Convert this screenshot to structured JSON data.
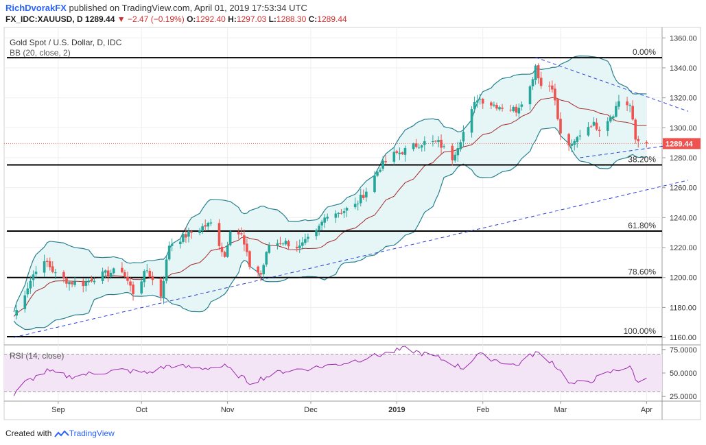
{
  "header": {
    "author": "RichDvorakFX",
    "published": "published on TradingView.com, April 01, 2019 17:53:34 UTC",
    "symbol": "FX_IDC:XAUUSD, D",
    "last": "1289.44",
    "change": "−2.47 (−0.19%)",
    "o_label": "O:",
    "o": "1292.40",
    "h_label": "H:",
    "h": "1297.03",
    "l_label": "L:",
    "l": "1288.30",
    "c_label": "C:",
    "c": "1289.44"
  },
  "legend": {
    "title": "Gold Spot / U.S. Dollar, D, IDC",
    "bb": "BB (20, close, 2)",
    "rsi": "RSI (14, close)"
  },
  "footer": {
    "created_with": "Created with",
    "brand": "TradingView"
  },
  "colors": {
    "up": "#26a69a",
    "down": "#ef5350",
    "bb": "#26808f",
    "bb_fill": "#e6f5f5",
    "basis": "#a52a2a",
    "trend": "#2a3fd6",
    "rsi": "#9c27b0",
    "rsi_fill": "#f3e5f5",
    "price_tag": "#ef5350"
  },
  "chart_data": {
    "type": "candlestick",
    "price_axis": {
      "ticks": [
        "1360.00",
        "1340.00",
        "1320.00",
        "1300.00",
        "1280.00",
        "1260.00",
        "1240.00",
        "1220.00",
        "1200.00",
        "1180.00",
        "1160.00"
      ],
      "ylim": [
        1155,
        1367
      ]
    },
    "current_price": "1289.44",
    "time_axis": {
      "labels": [
        "Sep",
        "Oct",
        "Nov",
        "Dec",
        "2019",
        "Feb",
        "Mar",
        "Apr"
      ]
    },
    "fibonacci": [
      {
        "label": "0.00%",
        "price": 1346.8
      },
      {
        "label": "38.20%",
        "price": 1275.2
      },
      {
        "label": "61.80%",
        "price": 1231.0
      },
      {
        "label": "78.60%",
        "price": 1200.0
      },
      {
        "label": "100.00%",
        "price": 1160.5
      }
    ],
    "close_path": [
      [
        "Aug 16",
        1174
      ],
      [
        "Aug 20",
        1190
      ],
      [
        "Aug 24",
        1206
      ],
      [
        "Aug 28",
        1210
      ],
      [
        "Aug 31",
        1202
      ],
      [
        "Sep 5",
        1197
      ],
      [
        "Sep 10",
        1196
      ],
      [
        "Sep 14",
        1200
      ],
      [
        "Sep 19",
        1203
      ],
      [
        "Sep 24",
        1205
      ],
      [
        "Sep 28",
        1190
      ],
      [
        "Oct 3",
        1205
      ],
      [
        "Oct 8",
        1188
      ],
      [
        "Oct 11",
        1222
      ],
      [
        "Oct 16",
        1227
      ],
      [
        "Oct 22",
        1233
      ],
      [
        "Oct 26",
        1236
      ],
      [
        "Oct 31",
        1214
      ],
      [
        "Nov 2",
        1233
      ],
      [
        "Nov 6",
        1228
      ],
      [
        "Nov 9",
        1208
      ],
      [
        "Nov 13",
        1202
      ],
      [
        "Nov 16",
        1222
      ],
      [
        "Nov 21",
        1224
      ],
      [
        "Nov 27",
        1220
      ],
      [
        "Dec 3",
        1230
      ],
      [
        "Dec 7",
        1243
      ],
      [
        "Dec 12",
        1244
      ],
      [
        "Dec 17",
        1248
      ],
      [
        "Dec 21",
        1258
      ],
      [
        "Dec 26",
        1274
      ],
      [
        "Dec 31",
        1282
      ],
      [
        "Jan 4",
        1285
      ],
      [
        "Jan 10",
        1290
      ],
      [
        "Jan 16",
        1290
      ],
      [
        "Jan 21",
        1280
      ],
      [
        "Jan 25",
        1297
      ],
      [
        "Jan 30",
        1320
      ],
      [
        "Feb 4",
        1316
      ],
      [
        "Feb 8",
        1314
      ],
      [
        "Feb 13",
        1312
      ],
      [
        "Feb 18",
        1327
      ],
      [
        "Feb 20",
        1342
      ],
      [
        "Feb 22",
        1328
      ],
      [
        "Feb 26",
        1328
      ],
      [
        "Mar 1",
        1295
      ],
      [
        "Mar 5",
        1287
      ],
      [
        "Mar 8",
        1296
      ],
      [
        "Mar 12",
        1303
      ],
      [
        "Mar 15",
        1300
      ],
      [
        "Mar 20",
        1310
      ],
      [
        "Mar 22",
        1318
      ],
      [
        "Mar 26",
        1315
      ],
      [
        "Mar 28",
        1292
      ],
      [
        "Apr 1",
        1289.44
      ]
    ],
    "rsi_axis": {
      "ticks": [
        "75.0000",
        "50.0000",
        "25.0000"
      ],
      "bands": [
        70,
        30
      ],
      "ylim": [
        20,
        80
      ]
    },
    "rsi_path": [
      [
        "Aug 16",
        26
      ],
      [
        "Aug 20",
        40
      ],
      [
        "Aug 28",
        52
      ],
      [
        "Sep 5",
        46
      ],
      [
        "Sep 14",
        50
      ],
      [
        "Sep 24",
        53
      ],
      [
        "Oct 3",
        50
      ],
      [
        "Oct 11",
        58
      ],
      [
        "Oct 22",
        55
      ],
      [
        "Oct 31",
        57
      ],
      [
        "Nov 9",
        40
      ],
      [
        "Nov 21",
        52
      ],
      [
        "Dec 3",
        56
      ],
      [
        "Dec 12",
        60
      ],
      [
        "Dec 21",
        66
      ],
      [
        "Dec 31",
        73
      ],
      [
        "Jan 4",
        76
      ],
      [
        "Jan 16",
        66
      ],
      [
        "Jan 25",
        55
      ],
      [
        "Jan 30",
        70
      ],
      [
        "Feb 8",
        62
      ],
      [
        "Feb 13",
        58
      ],
      [
        "Feb 20",
        72
      ],
      [
        "Feb 26",
        62
      ],
      [
        "Mar 5",
        38
      ],
      [
        "Mar 12",
        42
      ],
      [
        "Mar 20",
        52
      ],
      [
        "Mar 26",
        58
      ],
      [
        "Mar 28",
        42
      ],
      [
        "Apr 1",
        43
      ]
    ]
  }
}
